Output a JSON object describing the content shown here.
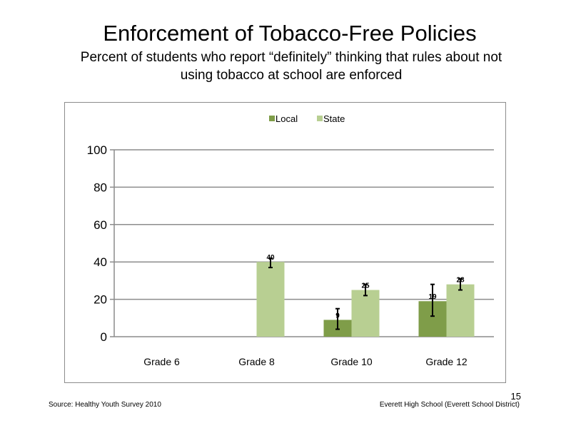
{
  "slide": {
    "title": "Enforcement  of  Tobacco-Free  Policies",
    "subtitle": "Percent  of students  who  report “definitely”  thinking  that rules about  not  using  tobacco  at  school  are  enforced",
    "slide_number": "15",
    "source": "Source: Healthy  Youth Survey  2010",
    "school": "Everett High School (Everett School District)"
  },
  "chart_data": {
    "type": "bar",
    "categories": [
      "Grade 6",
      "Grade 8",
      "Grade 10",
      "Grade 12"
    ],
    "series": [
      {
        "name": "Local",
        "color": "#7f9d49",
        "values": [
          null,
          null,
          9,
          19
        ],
        "labels": [
          "",
          "",
          "9",
          "19"
        ],
        "error_low": [
          null,
          null,
          4,
          11
        ],
        "error_high": [
          null,
          null,
          15,
          28
        ]
      },
      {
        "name": "State",
        "color": "#b8cf92",
        "values": [
          null,
          40,
          25,
          28
        ],
        "labels": [
          "",
          "40",
          "25",
          "28"
        ],
        "error_low": [
          null,
          37,
          22,
          25
        ],
        "error_high": [
          null,
          42,
          28,
          31
        ]
      }
    ],
    "ylim": [
      0,
      100
    ],
    "yticks": [
      0,
      20,
      40,
      60,
      80,
      100
    ],
    "grid": true,
    "legend": "top-center"
  }
}
